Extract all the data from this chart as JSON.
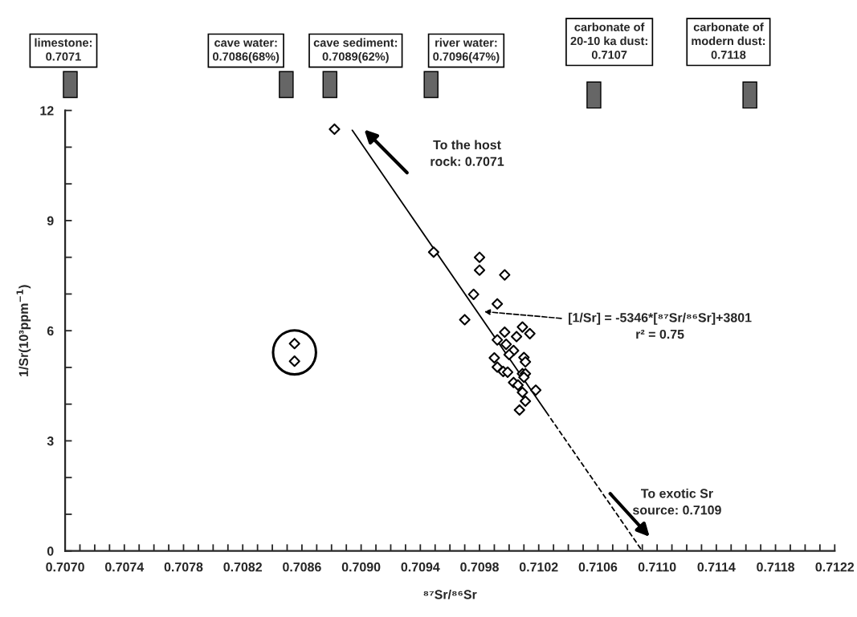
{
  "chart_data": {
    "type": "scatter",
    "xlabel": "⁸⁷Sr/⁸⁶Sr",
    "ylabel": "1/Sr(10³ppm$^{−1}$)",
    "xlim": [
      0.707,
      0.7122
    ],
    "ylim": [
      0,
      12
    ],
    "xticks": [
      {
        "value": 0.707,
        "label": "0.7070"
      },
      {
        "value": 0.7071,
        "label": null
      },
      {
        "value": 0.7072,
        "label": null
      },
      {
        "value": 0.7073,
        "label": null
      },
      {
        "value": 0.7074,
        "label": "0.7074"
      },
      {
        "value": 0.7075,
        "label": null
      },
      {
        "value": 0.7076,
        "label": null
      },
      {
        "value": 0.7077,
        "label": null
      },
      {
        "value": 0.7078,
        "label": "0.7078"
      },
      {
        "value": 0.7079,
        "label": null
      },
      {
        "value": 0.708,
        "label": null
      },
      {
        "value": 0.7081,
        "label": null
      },
      {
        "value": 0.7082,
        "label": "0.7082"
      },
      {
        "value": 0.7083,
        "label": null
      },
      {
        "value": 0.7084,
        "label": null
      },
      {
        "value": 0.7085,
        "label": null
      },
      {
        "value": 0.7086,
        "label": "0.7086"
      },
      {
        "value": 0.7087,
        "label": null
      },
      {
        "value": 0.7088,
        "label": null
      },
      {
        "value": 0.7089,
        "label": null
      },
      {
        "value": 0.709,
        "label": "0.7090"
      },
      {
        "value": 0.7091,
        "label": null
      },
      {
        "value": 0.7092,
        "label": null
      },
      {
        "value": 0.7093,
        "label": null
      },
      {
        "value": 0.7094,
        "label": "0.7094"
      },
      {
        "value": 0.7095,
        "label": null
      },
      {
        "value": 0.7096,
        "label": null
      },
      {
        "value": 0.7097,
        "label": null
      },
      {
        "value": 0.7098,
        "label": "0.7098"
      },
      {
        "value": 0.7099,
        "label": null
      },
      {
        "value": 0.71,
        "label": null
      },
      {
        "value": 0.7101,
        "label": null
      },
      {
        "value": 0.7102,
        "label": "0.7102"
      },
      {
        "value": 0.7103,
        "label": null
      },
      {
        "value": 0.7104,
        "label": null
      },
      {
        "value": 0.7105,
        "label": null
      },
      {
        "value": 0.7106,
        "label": "0.7106"
      },
      {
        "value": 0.7107,
        "label": null
      },
      {
        "value": 0.7108,
        "label": null
      },
      {
        "value": 0.7109,
        "label": null
      },
      {
        "value": 0.711,
        "label": "0.7110"
      },
      {
        "value": 0.7111,
        "label": null
      },
      {
        "value": 0.7112,
        "label": null
      },
      {
        "value": 0.7113,
        "label": null
      },
      {
        "value": 0.7114,
        "label": "0.7114"
      },
      {
        "value": 0.7115,
        "label": null
      },
      {
        "value": 0.7116,
        "label": null
      },
      {
        "value": 0.7117,
        "label": null
      },
      {
        "value": 0.7118,
        "label": "0.7118"
      },
      {
        "value": 0.7119,
        "label": null
      },
      {
        "value": 0.712,
        "label": null
      },
      {
        "value": 0.7121,
        "label": null
      },
      {
        "value": 0.7122,
        "label": "0.7122"
      }
    ],
    "yticks": [
      0,
      {
        "value": 1,
        "label": null
      },
      {
        "value": 2,
        "label": null
      },
      3,
      {
        "value": 4,
        "label": null
      },
      {
        "value": 5,
        "label": null
      },
      6,
      {
        "value": 7,
        "label": null
      },
      {
        "value": 8,
        "label": null
      },
      9,
      {
        "value": 10,
        "label": null
      },
      {
        "value": 11,
        "label": null
      },
      12
    ],
    "grid": false,
    "series": [
      {
        "marker": "diamond",
        "color": "#000000",
        "x": [
          0.70882,
          0.70855,
          0.70855,
          0.70949,
          0.7098,
          0.7098,
          0.70997,
          0.70976,
          0.70992,
          0.7097,
          0.71009,
          0.70997,
          0.71014,
          0.71005,
          0.70992,
          0.70998,
          0.71003,
          0.71,
          0.7101,
          0.71011,
          0.7099,
          0.70992,
          0.70996,
          0.70999,
          0.71009,
          0.71011,
          0.7101,
          0.71003,
          0.71006,
          0.71018,
          0.71009,
          0.71011,
          0.71007
        ],
        "values": [
          11.49,
          5.65,
          5.17,
          8.14,
          8.0,
          7.65,
          7.52,
          6.99,
          6.73,
          6.3,
          6.1,
          5.96,
          5.92,
          5.84,
          5.75,
          5.63,
          5.46,
          5.35,
          5.27,
          5.15,
          5.26,
          5.01,
          4.89,
          4.87,
          4.83,
          4.83,
          4.73,
          4.59,
          4.52,
          4.38,
          4.32,
          4.08,
          3.84
        ]
      },
      {
        "type": "line",
        "line_style": "solid",
        "color": "#000000",
        "x": [
          0.70894,
          0.71025
        ],
        "values": [
          11.46,
          3.79
        ]
      },
      {
        "type": "line",
        "line_style": "dashed",
        "color": "#000000",
        "x": [
          0.71025,
          0.7109
        ],
        "values": [
          3.79,
          0
        ]
      }
    ],
    "annotations": [
      "limestone:\n0.7071",
      "cave water:\n0.7086(68%)",
      "cave sediment:\n0.7089(62%)",
      "river water:\n0.7096(47%)",
      "carbonate of\n20-10 ka dust:\n0.7107",
      "carbonate of\nmodern dust:\n0.7118",
      "To the host\nrock: 0.7071",
      "[1/Sr] = -5346*[⁸⁷Sr/⁸⁶Sr]+3801\nr² = 0.75",
      "To exotic Sr\nsource: 0.7109"
    ]
  }
}
